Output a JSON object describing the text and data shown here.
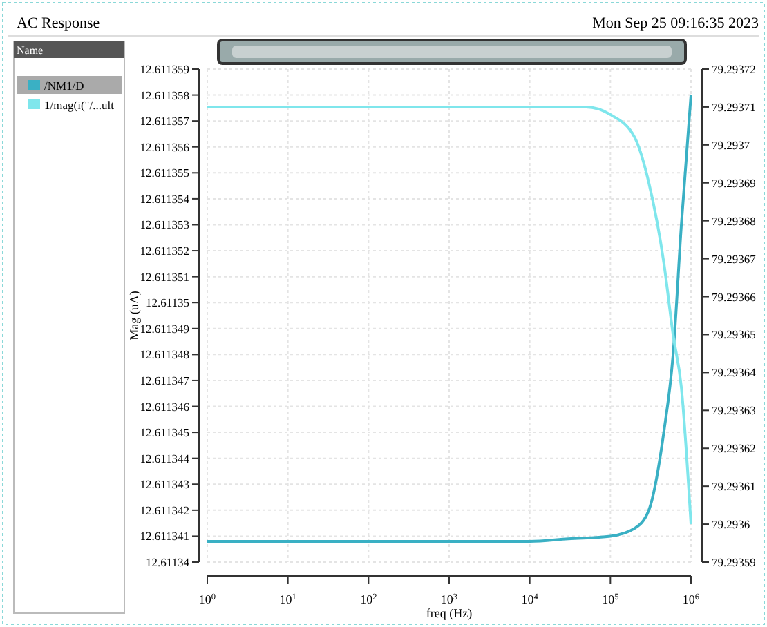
{
  "chart_data": {
    "type": "line",
    "title": "AC Response",
    "subtitle": "Mon Sep 25 09:16:35 2023",
    "xlabel": "freq (Hz)",
    "ylabel": "Mag (uA)",
    "legend_title": "Name",
    "legend": "left",
    "grid": true,
    "log": "x",
    "xlim": [
      1,
      1000000
    ],
    "xticks": [
      {
        "value": 1,
        "label": "10$^{0}$"
      },
      {
        "value": 10,
        "label": "10$^{1}$"
      },
      {
        "value": 100,
        "label": "10$^{2}$"
      },
      {
        "value": 1000,
        "label": "10$^{3}$"
      },
      {
        "value": 10000,
        "label": "10$^{4}$"
      },
      {
        "value": 100000,
        "label": "10$^{5}$"
      },
      {
        "value": 1000000,
        "label": "10$^{6}$"
      }
    ],
    "ylim": [
      12.61134,
      12.611359
    ],
    "yticks": [
      12.61134,
      12.611341,
      12.611342,
      12.611343,
      12.611344,
      12.611345,
      12.611346,
      12.611347,
      12.611348,
      12.611349,
      12.61135,
      12.611351,
      12.611352,
      12.611353,
      12.611354,
      12.611355,
      12.611356,
      12.611357,
      12.611358,
      12.611359
    ],
    "y2lim": [
      79.29359,
      79.29372
    ],
    "y2ticks": [
      79.29359,
      79.2936,
      79.29361,
      79.29362,
      79.29363,
      79.29364,
      79.29365,
      79.29366,
      79.29367,
      79.29368,
      79.29369,
      79.2937,
      79.29371,
      79.29372
    ],
    "series": [
      {
        "name": "/NM1/D",
        "color": "#3ab0c4",
        "x": [
          1,
          10000,
          30000,
          100000,
          200000,
          300000,
          460000,
          600000,
          760000,
          1000000
        ],
        "values": [
          12.6113408,
          12.6113408,
          12.6113409,
          12.611341,
          12.6113413,
          12.611342,
          12.611345,
          12.611348,
          12.611353,
          12.611358
        ]
      },
      {
        "name": "1/mag(i(\"/...ult",
        "color": "#7fe6ec",
        "axis": "y2",
        "x": [
          1,
          10000,
          50000,
          100000,
          200000,
          300000,
          460000,
          600000,
          760000,
          1000000
        ],
        "values": [
          79.29371,
          79.29371,
          79.29371,
          79.293708,
          79.293702,
          79.29369,
          79.293669,
          79.29365,
          79.293636,
          79.2936
        ]
      }
    ]
  }
}
